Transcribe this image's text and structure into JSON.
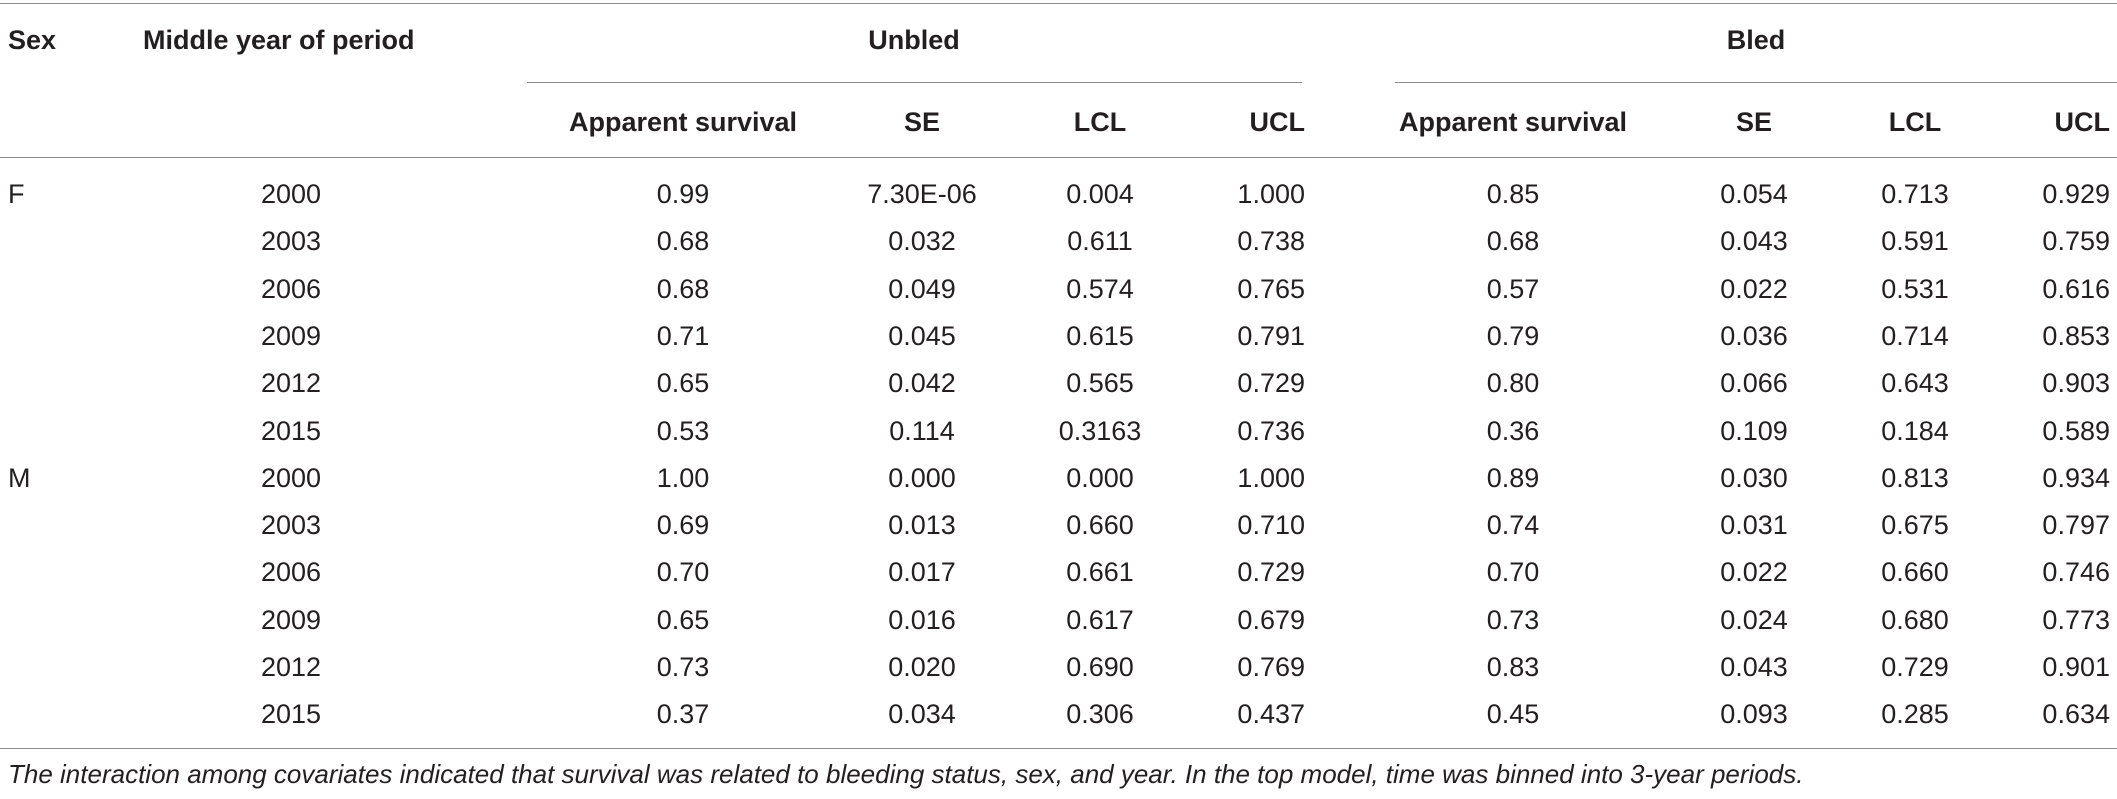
{
  "headers": {
    "sex": "Sex",
    "middle_year": "Middle year of period",
    "unbled": "Unbled",
    "bled": "Bled",
    "unbled_cols": [
      "Apparent survival",
      "SE",
      "LCL",
      "UCL"
    ],
    "bled_cols": [
      "Apparent survival",
      "SE",
      "LCL",
      "UCL"
    ]
  },
  "rows": [
    {
      "sex": "F",
      "year": "2000",
      "u": [
        "0.99",
        "7.30E-06",
        "0.004",
        "1.000"
      ],
      "b": [
        "0.85",
        "0.054",
        "0.713",
        "0.929"
      ]
    },
    {
      "sex": "",
      "year": "2003",
      "u": [
        "0.68",
        "0.032",
        "0.611",
        "0.738"
      ],
      "b": [
        "0.68",
        "0.043",
        "0.591",
        "0.759"
      ]
    },
    {
      "sex": "",
      "year": "2006",
      "u": [
        "0.68",
        "0.049",
        "0.574",
        "0.765"
      ],
      "b": [
        "0.57",
        "0.022",
        "0.531",
        "0.616"
      ]
    },
    {
      "sex": "",
      "year": "2009",
      "u": [
        "0.71",
        "0.045",
        "0.615",
        "0.791"
      ],
      "b": [
        "0.79",
        "0.036",
        "0.714",
        "0.853"
      ]
    },
    {
      "sex": "",
      "year": "2012",
      "u": [
        "0.65",
        "0.042",
        "0.565",
        "0.729"
      ],
      "b": [
        "0.80",
        "0.066",
        "0.643",
        "0.903"
      ]
    },
    {
      "sex": "",
      "year": "2015",
      "u": [
        "0.53",
        "0.114",
        "0.3163",
        "0.736"
      ],
      "b": [
        "0.36",
        "0.109",
        "0.184",
        "0.589"
      ]
    },
    {
      "sex": "M",
      "year": "2000",
      "u": [
        "1.00",
        "0.000",
        "0.000",
        "1.000"
      ],
      "b": [
        "0.89",
        "0.030",
        "0.813",
        "0.934"
      ]
    },
    {
      "sex": "",
      "year": "2003",
      "u": [
        "0.69",
        "0.013",
        "0.660",
        "0.710"
      ],
      "b": [
        "0.74",
        "0.031",
        "0.675",
        "0.797"
      ]
    },
    {
      "sex": "",
      "year": "2006",
      "u": [
        "0.70",
        "0.017",
        "0.661",
        "0.729"
      ],
      "b": [
        "0.70",
        "0.022",
        "0.660",
        "0.746"
      ]
    },
    {
      "sex": "",
      "year": "2009",
      "u": [
        "0.65",
        "0.016",
        "0.617",
        "0.679"
      ],
      "b": [
        "0.73",
        "0.024",
        "0.680",
        "0.773"
      ]
    },
    {
      "sex": "",
      "year": "2012",
      "u": [
        "0.73",
        "0.020",
        "0.690",
        "0.769"
      ],
      "b": [
        "0.83",
        "0.043",
        "0.729",
        "0.901"
      ]
    },
    {
      "sex": "",
      "year": "2015",
      "u": [
        "0.37",
        "0.034",
        "0.306",
        "0.437"
      ],
      "b": [
        "0.45",
        "0.093",
        "0.285",
        "0.634"
      ]
    }
  ],
  "footnote": "The interaction among covariates indicated that survival was related to bleeding status, sex, and year. In the top model, time was binned into 3-year periods."
}
